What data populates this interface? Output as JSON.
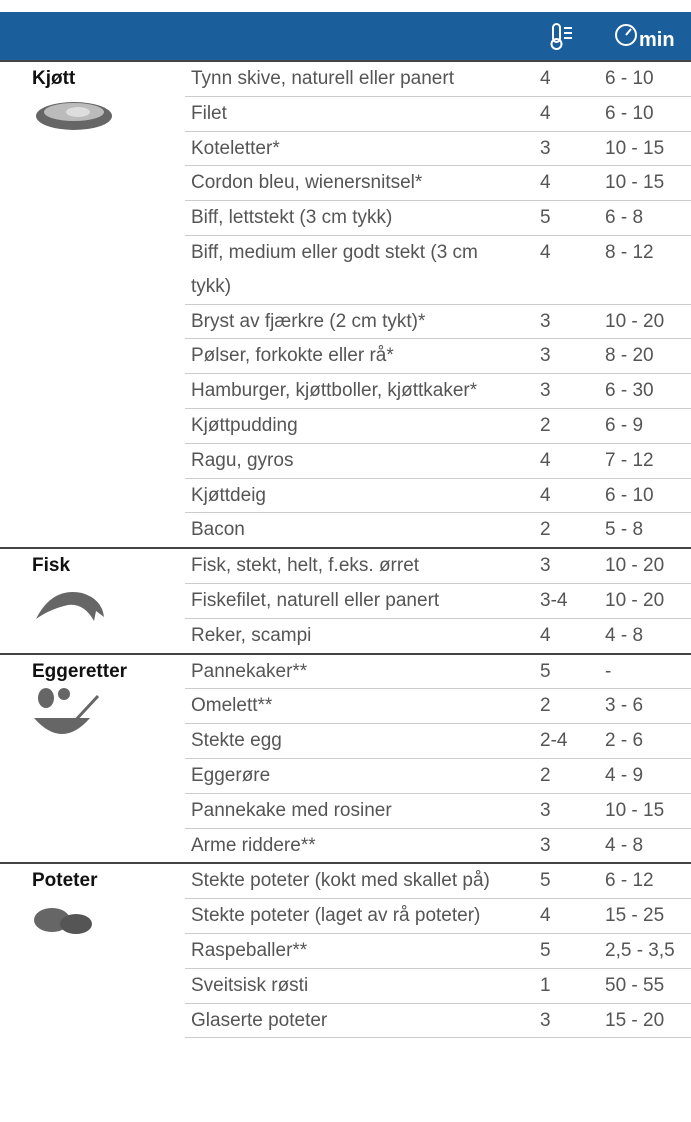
{
  "header": {
    "time_unit": "min"
  },
  "groups": [
    {
      "name": "Kjøtt",
      "rows": [
        [
          "Tynn skive, naturell eller panert",
          "4",
          "6 - 10"
        ],
        [
          "Filet",
          "4",
          "6 - 10"
        ],
        [
          "Koteletter*",
          "3",
          "10 - 15"
        ],
        [
          "Cordon bleu, wienersnitsel*",
          "4",
          "10 - 15"
        ],
        [
          "Biff, lettstekt (3 cm tykk)",
          "5",
          "6 - 8"
        ],
        [
          "Biff, medium eller godt stekt (3 cm tykk)",
          "4",
          "8 - 12"
        ],
        [
          "Bryst av fjærkre (2 cm tykt)*",
          "3",
          "10 - 20"
        ],
        [
          "Pølser, forkokte eller rå*",
          "3",
          "8 - 20"
        ],
        [
          "Hamburger, kjøttboller, kjøttkaker*",
          "3",
          "6 - 30"
        ],
        [
          "Kjøttpudding",
          "2",
          "6 - 9"
        ],
        [
          "Ragu, gyros",
          "4",
          "7 - 12"
        ],
        [
          "Kjøttdeig",
          "4",
          "6 - 10"
        ],
        [
          "Bacon",
          "2",
          "5 - 8"
        ]
      ]
    },
    {
      "name": "Fisk",
      "rows": [
        [
          "Fisk, stekt, helt, f.eks. ørret",
          "3",
          "10 - 20"
        ],
        [
          "Fiskefilet, naturell eller panert",
          "3-4",
          "10 - 20"
        ],
        [
          "Reker, scampi",
          "4",
          "4 - 8"
        ]
      ]
    },
    {
      "name": "Eggeretter",
      "rows": [
        [
          "Pannekaker**",
          "5",
          "-"
        ],
        [
          "Omelett**",
          "2",
          "3 - 6"
        ],
        [
          "Stekte egg",
          "2-4",
          "2 - 6"
        ],
        [
          "Eggerøre",
          "2",
          "4 - 9"
        ],
        [
          "Pannekake med rosiner",
          "3",
          "10 - 15"
        ],
        [
          "Arme riddere**",
          "3",
          "4 - 8"
        ]
      ]
    },
    {
      "name": "Poteter",
      "rows": [
        [
          "Stekte poteter (kokt med skallet på)",
          "5",
          "6 - 12"
        ],
        [
          "Stekte poteter (laget av rå poteter)",
          "4",
          "15 - 25"
        ],
        [
          "Raspeballer**",
          "5",
          "2,5 - 3,5"
        ],
        [
          "Sveitsisk røsti",
          "1",
          "50 - 55"
        ],
        [
          "Glaserte poteter",
          "3",
          "15 - 20"
        ]
      ]
    }
  ]
}
